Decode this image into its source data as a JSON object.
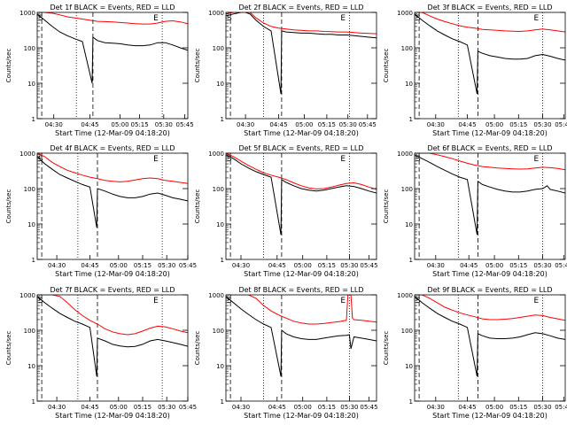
{
  "ylabel": "Counts/sec",
  "xlabel": "Start Time (12-Mar-09 04:18:20)",
  "x_tick_labels": [
    "04:30",
    "04:45",
    "05:00",
    "05:15",
    "05:30",
    "05:45"
  ],
  "y_tick_labels": [
    "1",
    "10",
    "100",
    "1000"
  ],
  "marker_s": "S",
  "marker_e": "E",
  "colors": {
    "events": "#000000",
    "lld": "#ff0000",
    "axes": "#000000"
  },
  "chart_data": [
    {
      "type": "line",
      "title": "Det 1f BLACK = Events, RED = LLD",
      "y_scale": "log",
      "ylim": [
        1,
        1000
      ],
      "xlim": [
        0,
        100
      ],
      "x_ticks": [
        11,
        35,
        55,
        68,
        84,
        98
      ],
      "vlines_dashed": [
        3,
        37
      ],
      "vlines_dotted": [
        26,
        83
      ],
      "series": [
        {
          "name": "Events",
          "x": [
            0,
            5,
            10,
            15,
            20,
            25,
            30,
            36.5,
            37,
            40,
            45,
            50,
            55,
            60,
            65,
            70,
            75,
            80,
            85,
            90,
            95,
            100
          ],
          "y": [
            900,
            600,
            400,
            280,
            220,
            180,
            150,
            10,
            200,
            160,
            140,
            135,
            130,
            120,
            115,
            115,
            120,
            140,
            140,
            120,
            100,
            85
          ]
        },
        {
          "name": "LLD",
          "x": [
            0,
            5,
            10,
            15,
            20,
            25,
            30,
            35,
            40,
            45,
            50,
            55,
            60,
            65,
            70,
            75,
            80,
            85,
            90,
            95,
            100
          ],
          "y": [
            1000,
            1000,
            950,
            850,
            750,
            700,
            650,
            600,
            560,
            550,
            540,
            520,
            500,
            480,
            470,
            470,
            500,
            560,
            580,
            540,
            480
          ]
        }
      ]
    },
    {
      "type": "line",
      "title": "Det 2f BLACK = Events, RED = LLD",
      "y_scale": "log",
      "ylim": [
        1,
        1000
      ],
      "xlim": [
        0,
        100
      ],
      "x_ticks": [
        13,
        35,
        52,
        67,
        81,
        94
      ],
      "vlines_dashed": [
        3,
        37
      ],
      "vlines_dotted": [
        25,
        82
      ],
      "series": [
        {
          "name": "Events",
          "x": [
            0,
            5,
            10,
            13,
            16,
            20,
            25,
            30,
            36.5,
            37,
            40,
            45,
            50,
            55,
            60,
            65,
            70,
            75,
            80,
            85,
            90,
            95,
            100
          ],
          "y": [
            800,
            900,
            1000,
            1000,
            900,
            600,
            400,
            300,
            5,
            300,
            280,
            270,
            260,
            260,
            250,
            240,
            240,
            230,
            230,
            220,
            210,
            200,
            190
          ]
        },
        {
          "name": "LLD",
          "x": [
            0,
            5,
            10,
            13,
            16,
            20,
            25,
            30,
            35,
            40,
            45,
            50,
            55,
            60,
            65,
            70,
            75,
            80,
            85,
            90,
            95,
            100
          ],
          "y": [
            900,
            1000,
            1000,
            1000,
            1000,
            700,
            500,
            400,
            360,
            340,
            320,
            310,
            300,
            300,
            290,
            285,
            280,
            280,
            270,
            260,
            255,
            250
          ]
        }
      ]
    },
    {
      "type": "line",
      "title": "Det 3f BLACK = Events, RED = LLD",
      "y_scale": "log",
      "ylim": [
        1,
        1000
      ],
      "xlim": [
        0,
        100
      ],
      "x_ticks": [
        14,
        35,
        53,
        69,
        85,
        99
      ],
      "vlines_dashed": [
        3,
        42
      ],
      "vlines_dotted": [
        29,
        85
      ],
      "series": [
        {
          "name": "Events",
          "x": [
            0,
            5,
            10,
            15,
            20,
            25,
            30,
            35,
            41.5,
            42,
            45,
            50,
            55,
            60,
            65,
            70,
            75,
            80,
            85,
            90,
            95,
            100
          ],
          "y": [
            900,
            600,
            420,
            300,
            230,
            180,
            150,
            120,
            5,
            80,
            70,
            60,
            55,
            50,
            48,
            48,
            50,
            60,
            65,
            58,
            50,
            45
          ]
        },
        {
          "name": "LLD",
          "x": [
            0,
            5,
            10,
            15,
            20,
            25,
            30,
            35,
            40,
            45,
            50,
            55,
            60,
            65,
            70,
            75,
            80,
            85,
            90,
            95,
            100
          ],
          "y": [
            1000,
            1000,
            800,
            650,
            550,
            480,
            420,
            380,
            360,
            330,
            320,
            310,
            300,
            295,
            290,
            300,
            320,
            340,
            320,
            300,
            280
          ]
        }
      ]
    },
    {
      "type": "line",
      "title": "Det 4f BLACK = Events, RED = LLD",
      "y_scale": "log",
      "ylim": [
        1,
        1000
      ],
      "xlim": [
        0,
        100
      ],
      "x_ticks": [
        13,
        35,
        54,
        70,
        86,
        100
      ],
      "vlines_dashed": [
        3,
        40
      ],
      "vlines_dotted": [
        27,
        83
      ],
      "series": [
        {
          "name": "Events",
          "x": [
            0,
            5,
            10,
            15,
            20,
            25,
            30,
            35,
            39.5,
            40,
            45,
            50,
            55,
            60,
            65,
            70,
            75,
            80,
            85,
            90,
            95,
            100
          ],
          "y": [
            800,
            500,
            350,
            250,
            200,
            160,
            130,
            110,
            8,
            100,
            85,
            70,
            60,
            55,
            55,
            60,
            70,
            75,
            65,
            55,
            50,
            45
          ]
        },
        {
          "name": "LLD",
          "x": [
            0,
            5,
            10,
            15,
            20,
            25,
            30,
            35,
            40,
            45,
            50,
            55,
            60,
            65,
            70,
            75,
            80,
            85,
            90,
            95,
            100
          ],
          "y": [
            1000,
            800,
            550,
            420,
            330,
            280,
            240,
            210,
            190,
            170,
            160,
            155,
            160,
            175,
            190,
            200,
            190,
            170,
            160,
            150,
            140
          ]
        }
      ]
    },
    {
      "type": "line",
      "title": "Det 5f BLACK = Events, RED = LLD",
      "y_scale": "log",
      "ylim": [
        1,
        1000
      ],
      "xlim": [
        0,
        100
      ],
      "x_ticks": [
        10,
        34,
        51,
        67,
        82,
        95
      ],
      "vlines_dashed": [
        3,
        37
      ],
      "vlines_dotted": [
        25,
        82
      ],
      "series": [
        {
          "name": "Events",
          "x": [
            0,
            5,
            10,
            15,
            20,
            25,
            30,
            36.5,
            37,
            40,
            45,
            50,
            55,
            60,
            65,
            70,
            75,
            80,
            85,
            90,
            95,
            100
          ],
          "y": [
            900,
            700,
            500,
            380,
            300,
            250,
            210,
            5,
            180,
            150,
            120,
            100,
            90,
            85,
            90,
            100,
            110,
            120,
            115,
            100,
            85,
            75
          ]
        },
        {
          "name": "LLD",
          "x": [
            0,
            5,
            10,
            15,
            20,
            25,
            30,
            35,
            40,
            45,
            50,
            55,
            60,
            65,
            70,
            75,
            80,
            85,
            90,
            95,
            100
          ],
          "y": [
            1000,
            800,
            600,
            450,
            350,
            280,
            240,
            210,
            180,
            145,
            120,
            105,
            98,
            100,
            110,
            125,
            140,
            145,
            130,
            110,
            95
          ]
        }
      ]
    },
    {
      "type": "line",
      "title": "Det 6f BLACK = Events, RED = LLD",
      "y_scale": "log",
      "ylim": [
        1,
        1000
      ],
      "xlim": [
        0,
        100
      ],
      "x_ticks": [
        14,
        36,
        53,
        69,
        85,
        99
      ],
      "vlines_dashed": [
        3,
        42
      ],
      "vlines_dotted": [
        29,
        85
      ],
      "series": [
        {
          "name": "Events",
          "x": [
            0,
            5,
            10,
            15,
            20,
            25,
            30,
            35,
            41.5,
            42,
            45,
            50,
            55,
            60,
            65,
            70,
            75,
            80,
            85,
            88,
            90,
            95,
            100
          ],
          "y": [
            900,
            700,
            550,
            420,
            330,
            260,
            210,
            180,
            5,
            160,
            130,
            110,
            95,
            85,
            80,
            80,
            85,
            95,
            100,
            120,
            95,
            85,
            75
          ]
        },
        {
          "name": "LLD",
          "x": [
            0,
            5,
            10,
            15,
            20,
            25,
            30,
            35,
            40,
            45,
            50,
            55,
            60,
            65,
            70,
            75,
            80,
            85,
            90,
            95,
            100
          ],
          "y": [
            1000,
            1000,
            1000,
            900,
            800,
            700,
            600,
            520,
            460,
            420,
            400,
            380,
            370,
            360,
            355,
            360,
            380,
            400,
            390,
            370,
            340
          ]
        }
      ]
    },
    {
      "type": "line",
      "title": "Det 7f BLACK = Events, RED = LLD",
      "y_scale": "log",
      "ylim": [
        1,
        1000
      ],
      "xlim": [
        0,
        100
      ],
      "x_ticks": [
        13,
        35,
        54,
        70,
        86,
        100
      ],
      "vlines_dashed": [
        3,
        40
      ],
      "vlines_dotted": [
        27,
        83
      ],
      "series": [
        {
          "name": "Events",
          "x": [
            0,
            5,
            10,
            15,
            20,
            25,
            30,
            35,
            39.5,
            40,
            45,
            50,
            55,
            60,
            65,
            70,
            75,
            80,
            85,
            90,
            95,
            100
          ],
          "y": [
            900,
            600,
            420,
            300,
            230,
            180,
            150,
            120,
            5,
            60,
            50,
            40,
            36,
            34,
            35,
            40,
            50,
            55,
            50,
            45,
            40,
            35
          ]
        },
        {
          "name": "LLD",
          "x": [
            0,
            5,
            10,
            15,
            20,
            25,
            30,
            35,
            40,
            45,
            50,
            55,
            60,
            65,
            70,
            75,
            80,
            85,
            90,
            95,
            100
          ],
          "y": [
            1000,
            1000,
            1000,
            900,
            600,
            380,
            260,
            190,
            150,
            110,
            90,
            80,
            75,
            80,
            95,
            115,
            130,
            125,
            110,
            95,
            85
          ]
        }
      ]
    },
    {
      "type": "line",
      "title": "Det 8f BLACK = Events, RED = LLD",
      "y_scale": "log",
      "ylim": [
        1,
        1000
      ],
      "xlim": [
        0,
        100
      ],
      "x_ticks": [
        10,
        34,
        51,
        67,
        82,
        95
      ],
      "vlines_dashed": [
        3,
        37
      ],
      "vlines_dotted": [
        25,
        82
      ],
      "series": [
        {
          "name": "Events",
          "x": [
            0,
            5,
            10,
            15,
            20,
            25,
            30,
            36.5,
            37,
            40,
            45,
            50,
            55,
            60,
            65,
            70,
            75,
            80,
            82,
            83,
            85,
            90,
            95,
            100
          ],
          "y": [
            900,
            600,
            400,
            280,
            200,
            150,
            120,
            5,
            100,
            80,
            65,
            58,
            55,
            55,
            60,
            65,
            70,
            72,
            75,
            30,
            65,
            60,
            55,
            50
          ]
        },
        {
          "name": "LLD",
          "x": [
            0,
            5,
            10,
            15,
            20,
            25,
            30,
            35,
            40,
            45,
            50,
            55,
            60,
            65,
            70,
            75,
            80,
            81,
            82,
            83,
            84,
            85,
            90,
            95,
            100
          ],
          "y": [
            1000,
            1000,
            1000,
            1000,
            800,
            500,
            350,
            270,
            220,
            180,
            160,
            150,
            150,
            155,
            165,
            175,
            190,
            1000,
            1000,
            1000,
            220,
            200,
            190,
            180,
            170
          ]
        }
      ]
    },
    {
      "type": "line",
      "title": "Det 9f BLACK = Events, RED = LLD",
      "y_scale": "log",
      "ylim": [
        1,
        1000
      ],
      "xlim": [
        0,
        100
      ],
      "x_ticks": [
        14,
        35,
        53,
        69,
        85,
        99
      ],
      "vlines_dashed": [
        3,
        42
      ],
      "vlines_dotted": [
        29,
        85
      ],
      "series": [
        {
          "name": "Events",
          "x": [
            0,
            5,
            10,
            15,
            20,
            25,
            30,
            35,
            41.5,
            42,
            45,
            50,
            55,
            60,
            65,
            70,
            75,
            80,
            85,
            90,
            95,
            100
          ],
          "y": [
            900,
            600,
            420,
            300,
            230,
            180,
            150,
            120,
            5,
            80,
            70,
            60,
            58,
            58,
            60,
            65,
            75,
            85,
            80,
            70,
            60,
            55
          ]
        },
        {
          "name": "LLD",
          "x": [
            0,
            5,
            10,
            15,
            20,
            25,
            30,
            35,
            40,
            45,
            50,
            55,
            60,
            65,
            70,
            75,
            80,
            85,
            90,
            95,
            100
          ],
          "y": [
            1000,
            1000,
            800,
            600,
            450,
            370,
            310,
            270,
            240,
            210,
            200,
            200,
            205,
            215,
            230,
            250,
            270,
            260,
            230,
            210,
            190
          ]
        }
      ]
    }
  ]
}
